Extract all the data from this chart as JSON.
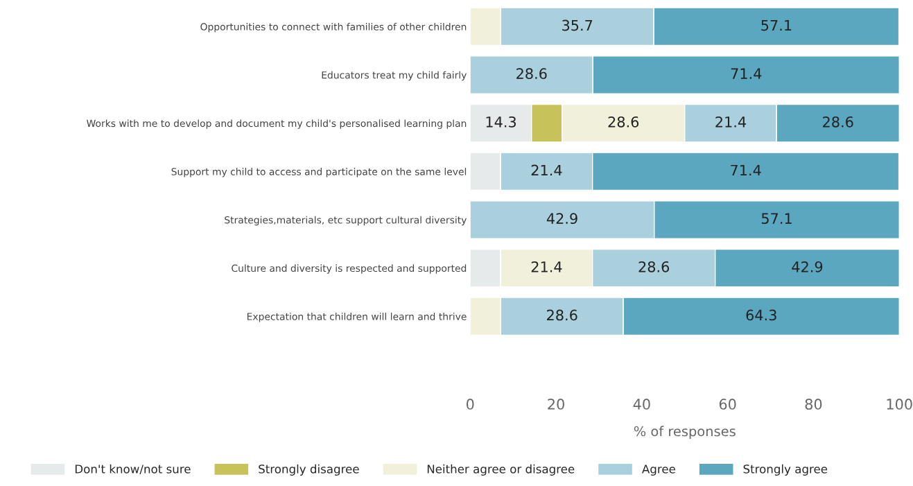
{
  "chart_data": {
    "type": "bar",
    "orientation": "horizontal",
    "stacked": true,
    "xlabel": "% of responses",
    "categories": [
      "Opportunities to connect with families of other children",
      "Educators treat my child fairly",
      "Works with me to develop and document my child's personalised learning plan",
      "Support my child to access and participate on the same level",
      "Strategies,materials, etc support cultural diversity",
      "Culture and diversity is respected and supported",
      "Expectation that children will learn and thrive"
    ],
    "series": [
      {
        "name": "Don't know/not sure",
        "color": "#e6eaea",
        "values": [
          0,
          0,
          14.3,
          7.1,
          0,
          7.1,
          0
        ],
        "value_labels": [
          null,
          null,
          "14.3",
          null,
          null,
          null,
          null
        ]
      },
      {
        "name": "Strongly disagree",
        "color": "#c8c25a",
        "values": [
          0,
          0,
          7.1,
          0,
          0,
          0,
          0
        ],
        "value_labels": [
          null,
          null,
          null,
          null,
          null,
          null,
          null
        ]
      },
      {
        "name": "Neither agree or disagree",
        "color": "#f1f0da",
        "values": [
          7.1,
          0,
          28.6,
          0,
          0,
          21.4,
          7.1
        ],
        "value_labels": [
          null,
          null,
          "28.6",
          null,
          null,
          "21.4",
          null
        ]
      },
      {
        "name": "Agree",
        "color": "#a9d0dc",
        "values": [
          35.7,
          28.6,
          21.4,
          21.4,
          42.9,
          28.6,
          28.6
        ],
        "value_labels": [
          "35.7",
          "28.6",
          "21.4",
          "21.4",
          "42.9",
          "28.6",
          "28.6"
        ]
      },
      {
        "name": "Strongly agree",
        "color": "#5ba7bf",
        "values": [
          57.1,
          71.4,
          28.6,
          71.4,
          57.1,
          42.9,
          64.3
        ],
        "value_labels": [
          "57.1",
          "71.4",
          "28.6",
          "71.4",
          "57.1",
          "42.9",
          "64.3"
        ]
      }
    ],
    "xlim": [
      0,
      100
    ],
    "xticks": [
      0,
      20,
      40,
      60,
      80,
      100
    ],
    "legend": "bottom",
    "grid": false
  }
}
